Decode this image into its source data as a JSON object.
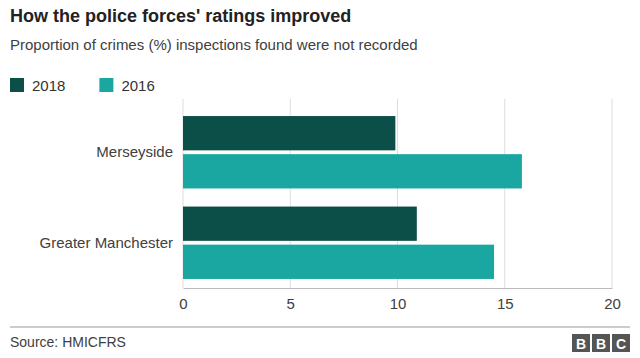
{
  "chart_data": {
    "type": "bar",
    "orientation": "horizontal",
    "title": "How the police forces' ratings improved",
    "subtitle": "Proportion of crimes (%) inspections found were not recorded",
    "categories": [
      "Merseyside",
      "Greater Manchester"
    ],
    "series": [
      {
        "name": "2018",
        "color": "#0c4e48",
        "values": [
          9.9,
          10.9
        ]
      },
      {
        "name": "2016",
        "color": "#1aa7a1",
        "values": [
          15.8,
          14.5
        ]
      }
    ],
    "xlim": [
      0,
      20
    ],
    "xticks": [
      0,
      5,
      10,
      15,
      20
    ],
    "grid": true,
    "legend": "top-left",
    "source": "Source: HMICFRS",
    "logo": "BBC"
  }
}
